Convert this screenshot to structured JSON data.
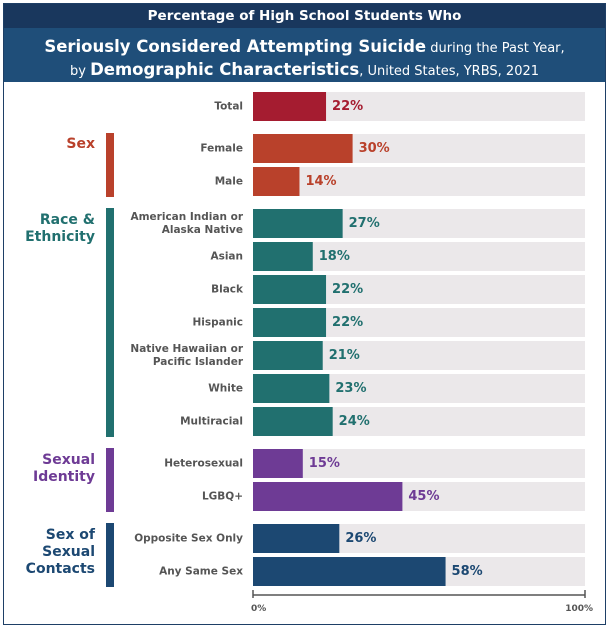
{
  "header": {
    "line1": "Percentage of High School Students Who",
    "line2_bold": "Seriously Considered Attempting Suicide",
    "line2_rest": " during the Past Year,",
    "line3_a": "by ",
    "line3_bold": "Demographic Characteristics",
    "line3_rest": ", United States, YRBS, 2021"
  },
  "chart_data": {
    "type": "bar",
    "orientation": "horizontal",
    "xlim": [
      0,
      100
    ],
    "x_ticks": [
      "0%",
      "100%"
    ],
    "groups": [
      {
        "name": "",
        "color": "#a51c30",
        "categories": [
          "Total"
        ],
        "values": [
          22
        ],
        "labels": [
          "22%"
        ]
      },
      {
        "name": "Sex",
        "color": "#b9412b",
        "categories": [
          "Female",
          "Male"
        ],
        "values": [
          30,
          14
        ],
        "labels": [
          "30%",
          "14%"
        ]
      },
      {
        "name": "Race & Ethnicity",
        "color": "#21706f",
        "categories": [
          "American Indian or Alaska Native",
          "Asian",
          "Black",
          "Hispanic",
          "Native Hawaiian or Pacific Islander",
          "White",
          "Multiracial"
        ],
        "values": [
          27,
          18,
          22,
          22,
          21,
          23,
          24
        ],
        "labels": [
          "27%",
          "18%",
          "22%",
          "22%",
          "21%",
          "23%",
          "24%"
        ]
      },
      {
        "name": "Sexual Identity",
        "color": "#6e3b95",
        "categories": [
          "Heterosexual",
          "LGBQ+"
        ],
        "values": [
          15,
          45
        ],
        "labels": [
          "15%",
          "45%"
        ]
      },
      {
        "name": "Sex of Sexual Contacts",
        "color": "#1c4872",
        "categories": [
          "Opposite Sex Only",
          "Any Same Sex"
        ],
        "values": [
          26,
          58
        ],
        "labels": [
          "26%",
          "58%"
        ]
      }
    ]
  }
}
